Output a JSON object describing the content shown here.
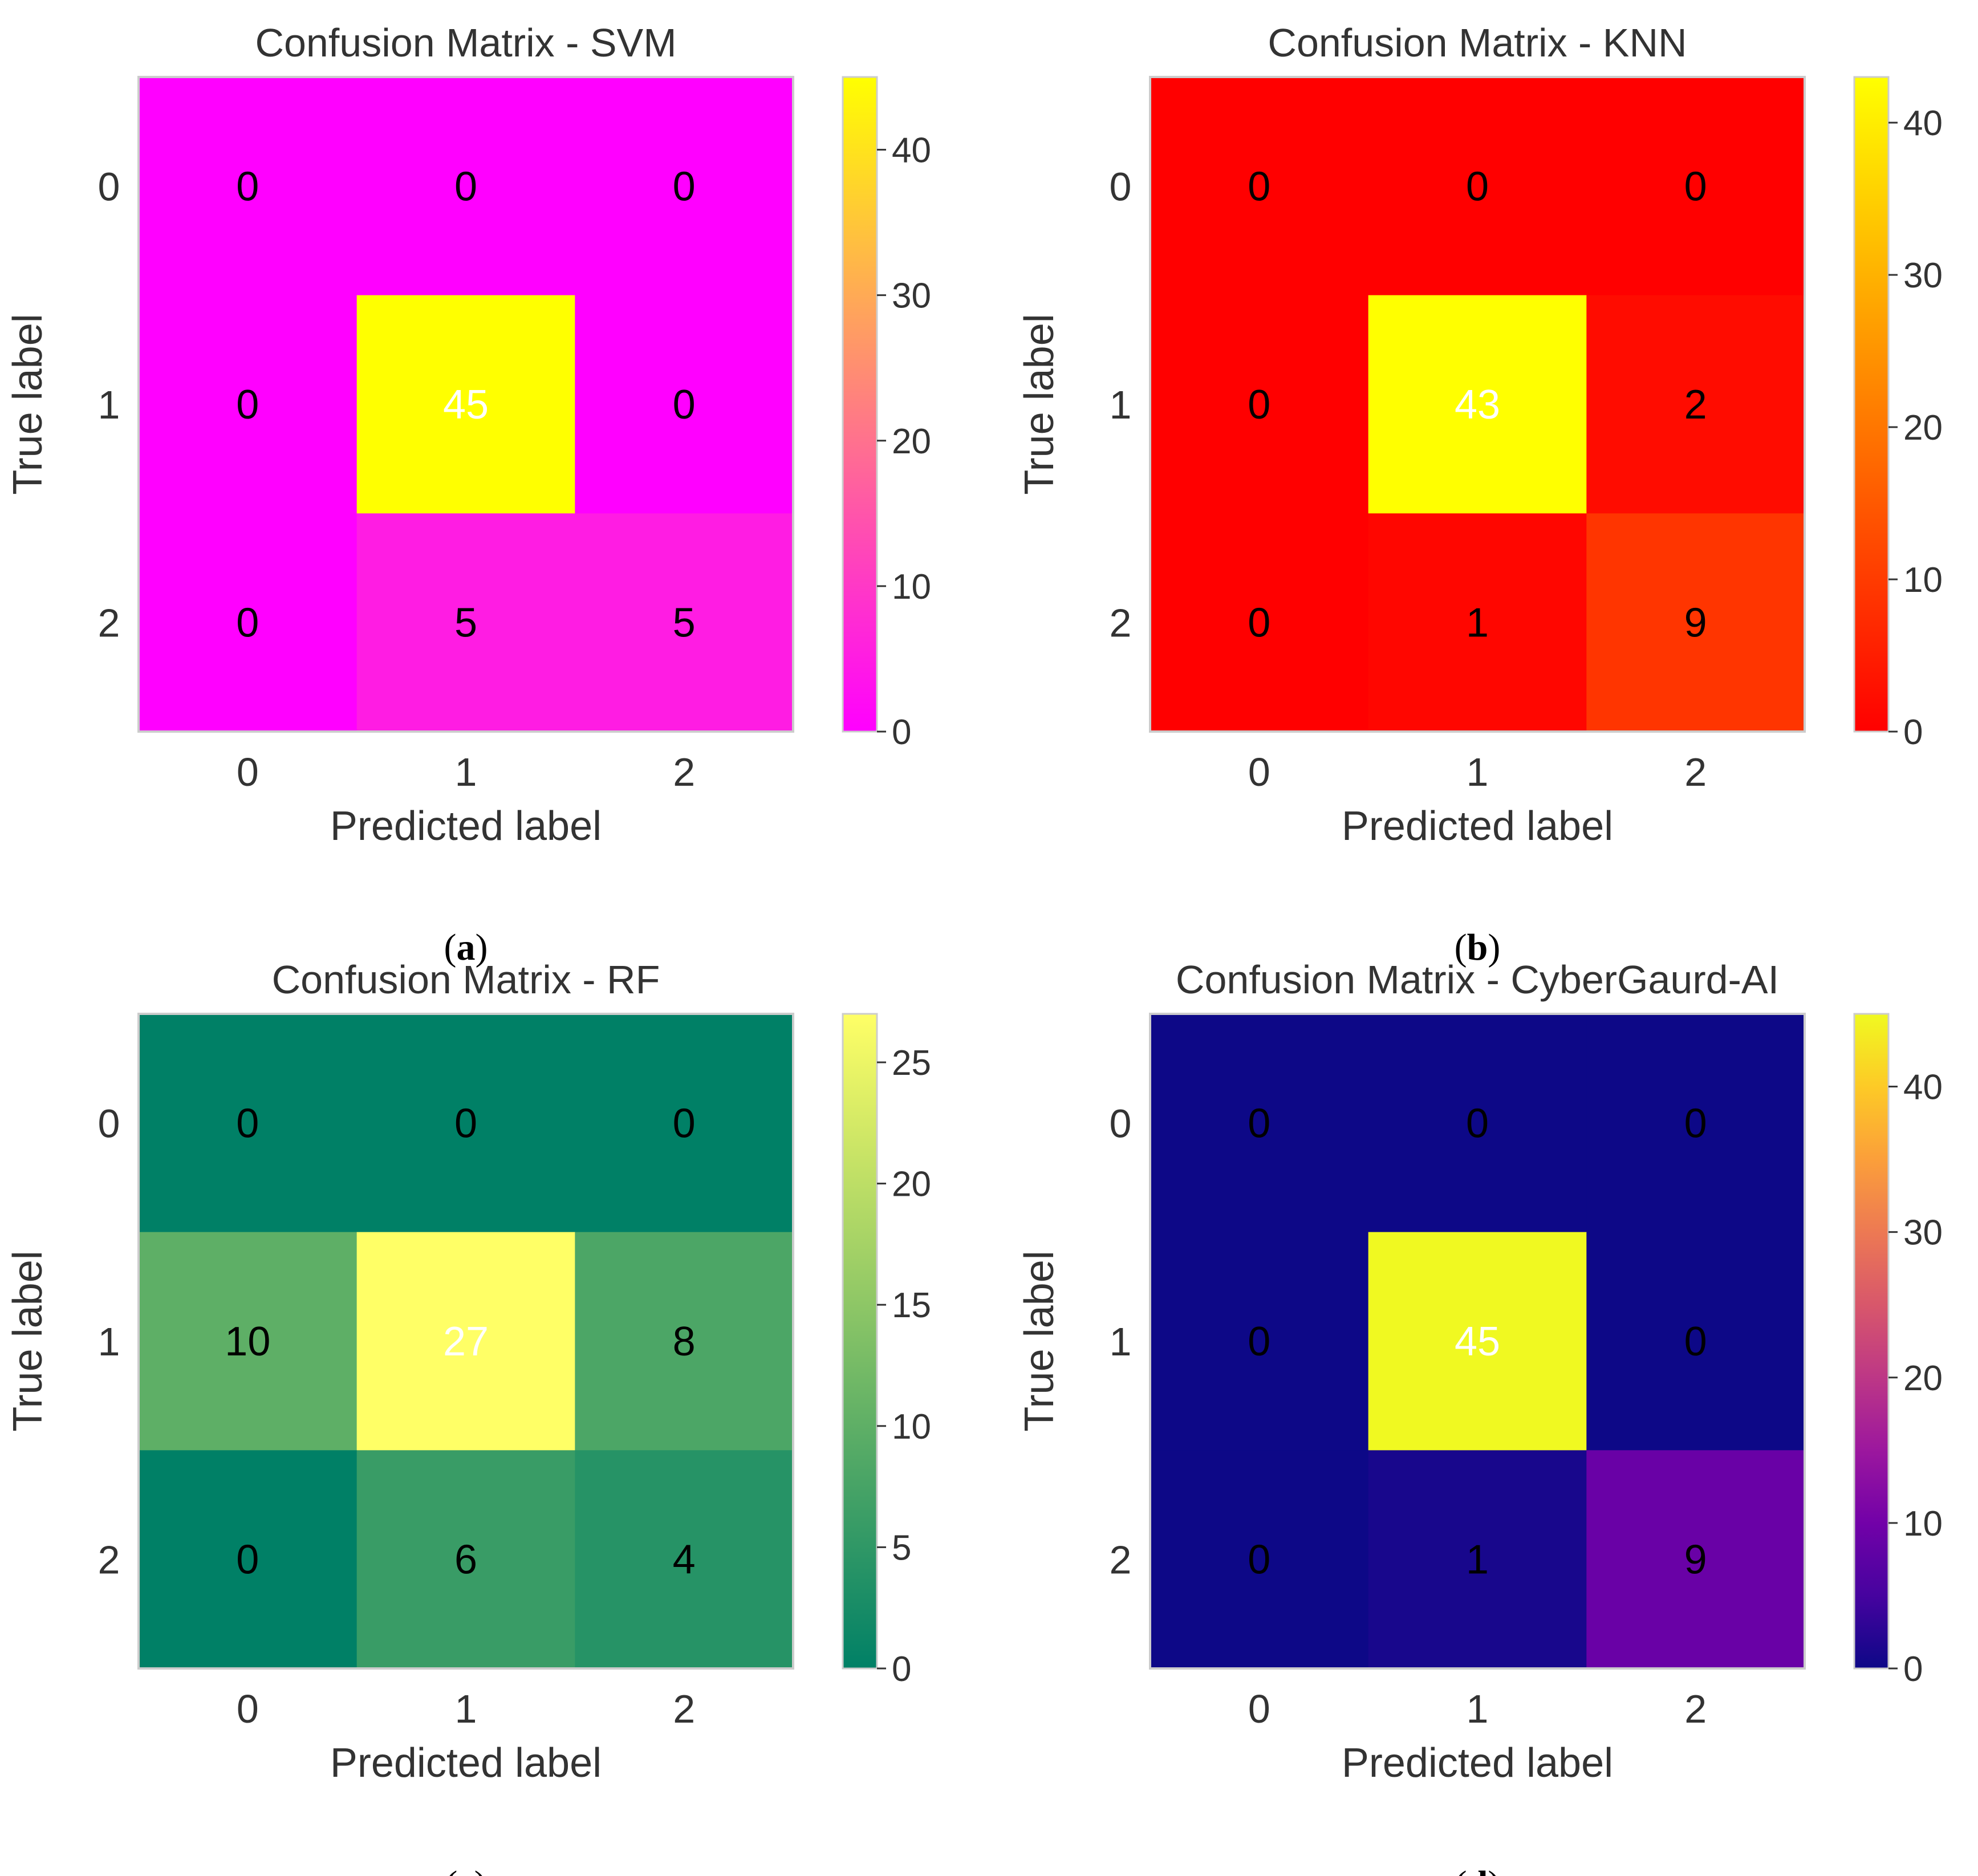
{
  "chart_data": [
    {
      "type": "heatmap",
      "title": "Confusion Matrix - SVM",
      "xlabel": "Predicted label",
      "ylabel": "True label",
      "x_tick_labels": [
        "0",
        "1",
        "2"
      ],
      "y_tick_labels": [
        "0",
        "1",
        "2"
      ],
      "matrix": [
        [
          0,
          0,
          0
        ],
        [
          0,
          45,
          0
        ],
        [
          0,
          5,
          5
        ]
      ],
      "colormap": "spring",
      "color_stops": [
        "#ff00ff",
        "#ffff00"
      ],
      "colorbar_range": [
        0,
        45
      ],
      "colorbar_ticks": [
        0,
        10,
        20,
        30,
        40
      ],
      "colorbar_tick_labels": [
        "0",
        "10",
        "20",
        "30",
        "40"
      ],
      "caption_label": "a"
    },
    {
      "type": "heatmap",
      "title": "Confusion Matrix - KNN",
      "xlabel": "Predicted label",
      "ylabel": "True label",
      "x_tick_labels": [
        "0",
        "1",
        "2"
      ],
      "y_tick_labels": [
        "0",
        "1",
        "2"
      ],
      "matrix": [
        [
          0,
          0,
          0
        ],
        [
          0,
          43,
          2
        ],
        [
          0,
          1,
          9
        ]
      ],
      "colormap": "autumn",
      "color_stops": [
        "#ff0000",
        "#ffff00"
      ],
      "colorbar_range": [
        0,
        43
      ],
      "colorbar_ticks": [
        0,
        10,
        20,
        30,
        40
      ],
      "colorbar_tick_labels": [
        "0",
        "10",
        "20",
        "30",
        "40"
      ],
      "caption_label": "b"
    },
    {
      "type": "heatmap",
      "title": "Confusion Matrix - RF",
      "xlabel": "Predicted label",
      "ylabel": "True label",
      "x_tick_labels": [
        "0",
        "1",
        "2"
      ],
      "y_tick_labels": [
        "0",
        "1",
        "2"
      ],
      "matrix": [
        [
          0,
          0,
          0
        ],
        [
          10,
          27,
          8
        ],
        [
          0,
          6,
          4
        ]
      ],
      "colormap": "summer",
      "color_stops": [
        "#008066",
        "#ffff66"
      ],
      "colorbar_range": [
        0,
        27
      ],
      "colorbar_ticks": [
        0,
        5,
        10,
        15,
        20,
        25
      ],
      "colorbar_tick_labels": [
        "0",
        "5",
        "10",
        "15",
        "20",
        "25"
      ],
      "caption_label": "c"
    },
    {
      "type": "heatmap",
      "title": "Confusion Matrix - CyberGaurd-AI",
      "xlabel": "Predicted label",
      "ylabel": "True label",
      "x_tick_labels": [
        "0",
        "1",
        "2"
      ],
      "y_tick_labels": [
        "0",
        "1",
        "2"
      ],
      "matrix": [
        [
          0,
          0,
          0
        ],
        [
          0,
          45,
          0
        ],
        [
          0,
          1,
          9
        ]
      ],
      "colormap": "plasma",
      "color_stops": [
        "#0d0887",
        "#46039f",
        "#7201a8",
        "#9c179e",
        "#bd3786",
        "#d8576b",
        "#ed7953",
        "#fb9f3a",
        "#fdca26",
        "#f0f921"
      ],
      "colorbar_range": [
        0,
        45
      ],
      "colorbar_ticks": [
        0,
        10,
        20,
        30,
        40
      ],
      "colorbar_tick_labels": [
        "0",
        "10",
        "20",
        "30",
        "40"
      ],
      "caption_label": "d"
    }
  ],
  "caption_parens": [
    "(",
    ")"
  ],
  "cell_text_colors": {
    "dark": "#000000",
    "light": "#ffffff"
  },
  "frame_color": "#cccccc",
  "text_color": "#333333"
}
